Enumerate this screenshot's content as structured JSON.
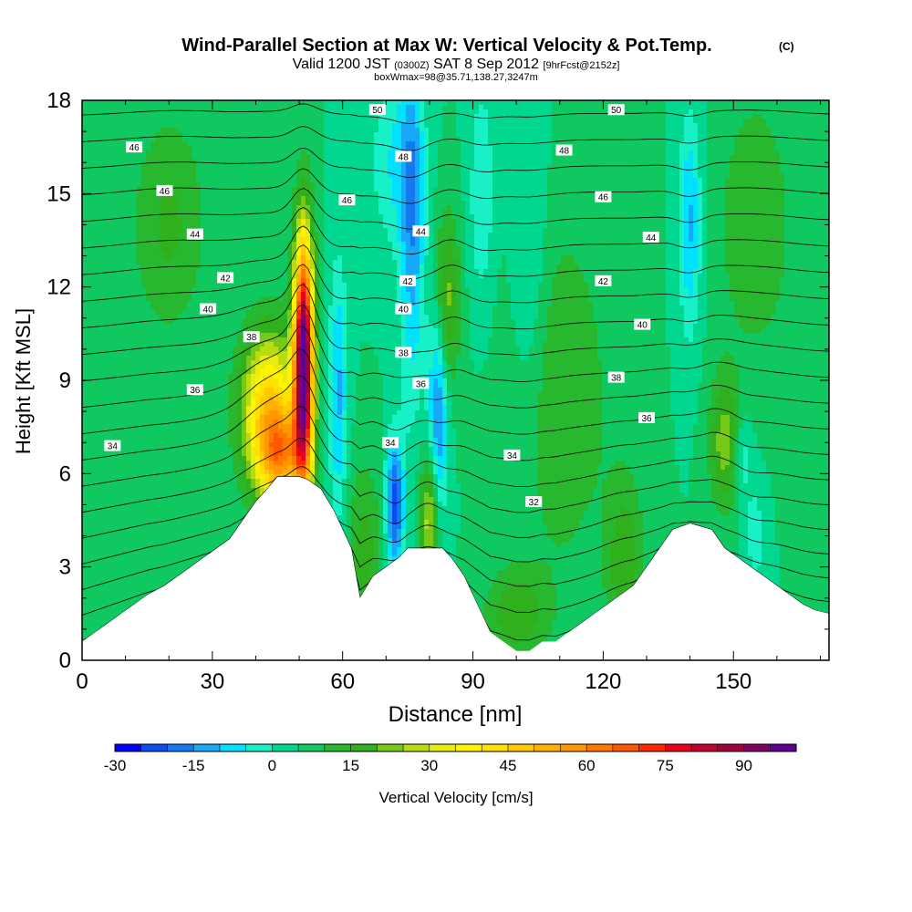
{
  "chart_data": {
    "type": "heatmap",
    "title": "Wind-Parallel Section at Max W: Vertical Velocity & Pot.Temp.",
    "title_mark": "(C)",
    "subtitle_valid": "Valid 1200 JST",
    "subtitle_utc": "(0300Z)",
    "subtitle_date": "SAT 8 Sep 2012",
    "subtitle_fcst": "[9hrFcst@2152z]",
    "subtitle_box": "boxWmax=98@35.71,138.27,3247m",
    "xlabel": "Distance [nm]",
    "ylabel": "Height [Kft MSL]",
    "xlim": [
      0,
      172
    ],
    "ylim": [
      0,
      18
    ],
    "x_ticks": [
      "0",
      "30",
      "60",
      "90",
      "120",
      "150"
    ],
    "x_tick_values": [
      0,
      30,
      60,
      90,
      120,
      150
    ],
    "y_ticks": [
      "0",
      "3",
      "6",
      "9",
      "12",
      "15",
      "18"
    ],
    "y_tick_values": [
      0,
      3,
      6,
      9,
      12,
      15,
      18
    ],
    "colorbar": {
      "label": "Vertical Velocity [cm/s]",
      "min": -30,
      "max": 100,
      "step": 5,
      "tick_labels": [
        "-30",
        "-15",
        "0",
        "15",
        "30",
        "45",
        "60",
        "75",
        "90"
      ],
      "tick_values": [
        -30,
        -15,
        0,
        15,
        30,
        45,
        60,
        75,
        90
      ],
      "colors": [
        "#0000ff",
        "#0a4cf0",
        "#1478f0",
        "#18a8f8",
        "#00e0ff",
        "#18f0c8",
        "#00d890",
        "#10c860",
        "#28b830",
        "#30b01c",
        "#78c818",
        "#b8dc10",
        "#e8ec10",
        "#fff400",
        "#ffe000",
        "#ffc800",
        "#ffb000",
        "#ff9800",
        "#ff7800",
        "#ff5800",
        "#ff2800",
        "#e8001c",
        "#c00030",
        "#a00040",
        "#800060",
        "#600090"
      ]
    },
    "background_w": 5,
    "terrain_kft": [
      [
        0,
        0.6
      ],
      [
        3,
        0.9
      ],
      [
        6,
        1.2
      ],
      [
        9,
        1.5
      ],
      [
        12,
        1.8
      ],
      [
        15,
        2.1
      ],
      [
        19,
        2.4
      ],
      [
        22,
        2.7
      ],
      [
        25,
        3.0
      ],
      [
        28,
        3.3
      ],
      [
        31,
        3.6
      ],
      [
        34,
        3.9
      ],
      [
        37,
        4.5
      ],
      [
        40,
        5.1
      ],
      [
        42,
        5.4
      ],
      [
        45,
        5.9
      ],
      [
        50,
        5.9
      ],
      [
        52,
        5.8
      ],
      [
        55,
        5.5
      ],
      [
        58,
        4.8
      ],
      [
        60,
        4.2
      ],
      [
        62,
        3.6
      ],
      [
        64,
        2.0
      ],
      [
        67,
        2.7
      ],
      [
        70,
        3.0
      ],
      [
        73,
        3.3
      ],
      [
        75,
        3.6
      ],
      [
        80,
        3.6
      ],
      [
        83,
        3.6
      ],
      [
        85,
        3.3
      ],
      [
        88,
        2.7
      ],
      [
        90,
        2.1
      ],
      [
        92,
        1.5
      ],
      [
        94,
        0.9
      ],
      [
        97,
        0.6
      ],
      [
        100,
        0.3
      ],
      [
        103,
        0.3
      ],
      [
        106,
        0.6
      ],
      [
        109,
        0.6
      ],
      [
        112,
        0.9
      ],
      [
        115,
        1.2
      ],
      [
        118,
        1.5
      ],
      [
        121,
        1.8
      ],
      [
        124,
        2.1
      ],
      [
        127,
        2.4
      ],
      [
        130,
        3.0
      ],
      [
        133,
        3.6
      ],
      [
        136,
        4.2
      ],
      [
        140,
        4.4
      ],
      [
        145,
        4.2
      ],
      [
        148,
        3.6
      ],
      [
        151,
        3.3
      ],
      [
        154,
        3.0
      ],
      [
        157,
        2.7
      ],
      [
        160,
        2.4
      ],
      [
        163,
        2.1
      ],
      [
        166,
        1.8
      ],
      [
        169,
        1.6
      ],
      [
        172,
        1.5
      ]
    ],
    "updraft_cells": [
      {
        "x": 51,
        "y": 9.6,
        "sx": 1.6,
        "sy": 2.8,
        "w": 95
      },
      {
        "x": 43,
        "y": 8.0,
        "sx": 4.5,
        "sy": 1.8,
        "w": 42
      },
      {
        "x": 46,
        "y": 6.5,
        "sx": 3.5,
        "sy": 1.0,
        "w": 35
      },
      {
        "x": 80,
        "y": 4.5,
        "sx": 1.5,
        "sy": 1.5,
        "w": 25
      },
      {
        "x": 84,
        "y": 11.5,
        "sx": 2.0,
        "sy": 2.0,
        "w": 18
      },
      {
        "x": 148,
        "y": 7.0,
        "sx": 2.5,
        "sy": 1.5,
        "w": 18
      },
      {
        "x": 125,
        "y": 3.0,
        "sx": 3.0,
        "sy": 2.0,
        "w": 14
      },
      {
        "x": 100,
        "y": 1.5,
        "sx": 5.0,
        "sy": 1.0,
        "w": 14
      },
      {
        "x": 65,
        "y": 3.5,
        "sx": 3.0,
        "sy": 2.0,
        "w": 12
      },
      {
        "x": 20,
        "y": 14.0,
        "sx": 6.0,
        "sy": 2.5,
        "w": 11
      },
      {
        "x": 110,
        "y": 8.5,
        "sx": 8.0,
        "sy": 4.0,
        "w": 10
      },
      {
        "x": 155,
        "y": 14.0,
        "sx": 6.0,
        "sy": 3.0,
        "w": 10
      }
    ],
    "downdraft_cells": [
      {
        "x": 72,
        "y": 5.0,
        "sx": 1.5,
        "sy": 1.5,
        "w": -28
      },
      {
        "x": 82,
        "y": 8.0,
        "sx": 1.6,
        "sy": 2.5,
        "w": -22
      },
      {
        "x": 59,
        "y": 8.5,
        "sx": 1.5,
        "sy": 3.0,
        "w": -16
      },
      {
        "x": 76,
        "y": 14.0,
        "sx": 2.0,
        "sy": 4.0,
        "w": -18
      },
      {
        "x": 92,
        "y": 15.0,
        "sx": 2.0,
        "sy": 2.5,
        "w": -10
      },
      {
        "x": 140,
        "y": 14.0,
        "sx": 1.8,
        "sy": 2.5,
        "w": -16
      },
      {
        "x": 152,
        "y": 6.5,
        "sx": 1.5,
        "sy": 1.0,
        "w": -10
      },
      {
        "x": 155,
        "y": 4.0,
        "sx": 1.5,
        "sy": 1.2,
        "w": -8
      },
      {
        "x": 103,
        "y": 12.5,
        "sx": 3.0,
        "sy": 4.0,
        "w": -8
      },
      {
        "x": 72,
        "y": 16.0,
        "sx": 4.0,
        "sy": 2.0,
        "w": -10
      }
    ],
    "theta_levels": [
      30,
      31,
      32,
      33,
      34,
      35,
      36,
      37,
      38,
      39,
      40,
      41,
      42,
      43,
      44,
      45,
      46,
      47,
      48,
      49,
      50
    ],
    "theta_labels": [
      {
        "text": "50",
        "x": 68,
        "y": 17.7
      },
      {
        "text": "48",
        "x": 74,
        "y": 16.2
      },
      {
        "text": "46",
        "x": 12,
        "y": 16.5
      },
      {
        "text": "46",
        "x": 19,
        "y": 15.1
      },
      {
        "text": "46",
        "x": 61,
        "y": 14.8
      },
      {
        "text": "44",
        "x": 26,
        "y": 13.7
      },
      {
        "text": "44",
        "x": 78,
        "y": 13.8
      },
      {
        "text": "42",
        "x": 33,
        "y": 12.3
      },
      {
        "text": "42",
        "x": 75,
        "y": 12.2
      },
      {
        "text": "40",
        "x": 29,
        "y": 11.3
      },
      {
        "text": "40",
        "x": 74,
        "y": 11.3
      },
      {
        "text": "38",
        "x": 39,
        "y": 10.4
      },
      {
        "text": "38",
        "x": 74,
        "y": 9.9
      },
      {
        "text": "36",
        "x": 26,
        "y": 8.7
      },
      {
        "text": "36",
        "x": 78,
        "y": 8.9
      },
      {
        "text": "34",
        "x": 7,
        "y": 6.9
      },
      {
        "text": "34",
        "x": 71,
        "y": 7.0
      },
      {
        "text": "34",
        "x": 99,
        "y": 6.6
      },
      {
        "text": "32",
        "x": 104,
        "y": 5.1
      },
      {
        "text": "50",
        "x": 123,
        "y": 17.7
      },
      {
        "text": "48",
        "x": 111,
        "y": 16.4
      },
      {
        "text": "46",
        "x": 120,
        "y": 14.9
      },
      {
        "text": "44",
        "x": 131,
        "y": 13.6
      },
      {
        "text": "42",
        "x": 120,
        "y": 12.2
      },
      {
        "text": "40",
        "x": 129,
        "y": 10.8
      },
      {
        "text": "38",
        "x": 123,
        "y": 9.1
      },
      {
        "text": "36",
        "x": 130,
        "y": 7.8
      }
    ]
  }
}
